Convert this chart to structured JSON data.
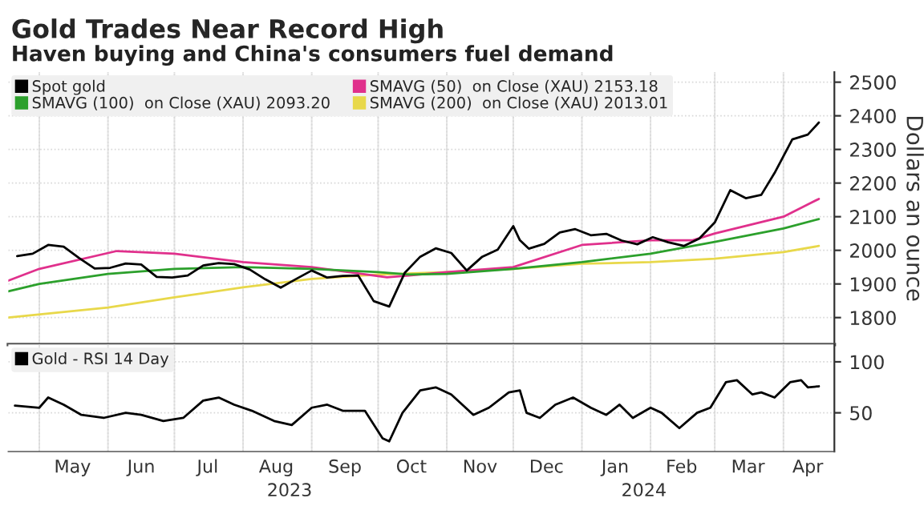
{
  "chart_data": [
    {
      "type": "line",
      "title": "Gold Trades Near Record High",
      "subtitle": "Haven buying and China's consumers fuel demand",
      "ylabel": "Dollars an ounce",
      "xlim": [
        "2023-04-17",
        "2024-04-24"
      ],
      "ylim": [
        1720,
        2530
      ],
      "yticks": [
        1800,
        1900,
        2000,
        2100,
        2200,
        2300,
        2400,
        2500
      ],
      "xticks": [
        {
          "value": "2023-05-01",
          "label": null
        },
        {
          "value": "2023-06-01",
          "label": null
        },
        {
          "value": "2023-07-01",
          "label": null
        },
        {
          "value": "2023-08-01",
          "label": null
        },
        {
          "value": "2023-09-01",
          "label": null
        },
        {
          "value": "2023-10-01",
          "label": null
        },
        {
          "value": "2023-11-01",
          "label": null
        },
        {
          "value": "2023-12-01",
          "label": null
        },
        {
          "value": "2024-01-01",
          "label": null
        },
        {
          "value": "2024-02-01",
          "label": null
        },
        {
          "value": "2024-03-01",
          "label": null
        },
        {
          "value": "2024-04-01",
          "label": null
        }
      ],
      "tick_labels": "y",
      "grid": true,
      "legend": "top left",
      "series": [
        {
          "name": "Spot gold",
          "color": "#000000",
          "x": [
            "2023-04-21",
            "2023-04-28",
            "2023-05-05",
            "2023-05-12",
            "2023-05-19",
            "2023-05-26",
            "2023-06-02",
            "2023-06-09",
            "2023-06-16",
            "2023-06-23",
            "2023-06-30",
            "2023-07-07",
            "2023-07-14",
            "2023-07-21",
            "2023-07-28",
            "2023-08-04",
            "2023-08-11",
            "2023-08-18",
            "2023-08-25",
            "2023-09-01",
            "2023-09-08",
            "2023-09-15",
            "2023-09-22",
            "2023-09-29",
            "2023-10-06",
            "2023-10-13",
            "2023-10-20",
            "2023-10-27",
            "2023-11-03",
            "2023-11-10",
            "2023-11-17",
            "2023-11-24",
            "2023-12-01",
            "2023-12-04",
            "2023-12-08",
            "2023-12-15",
            "2023-12-22",
            "2023-12-29",
            "2024-01-05",
            "2024-01-12",
            "2024-01-19",
            "2024-01-26",
            "2024-02-02",
            "2024-02-09",
            "2024-02-16",
            "2024-02-23",
            "2024-03-01",
            "2024-03-08",
            "2024-03-15",
            "2024-03-22",
            "2024-03-28",
            "2024-04-05",
            "2024-04-12",
            "2024-04-17"
          ],
          "values": [
            1983,
            1990,
            2016,
            2011,
            1977,
            1946,
            1948,
            1961,
            1958,
            1921,
            1919,
            1925,
            1955,
            1962,
            1959,
            1943,
            1914,
            1889,
            1915,
            1940,
            1919,
            1924,
            1925,
            1849,
            1833,
            1933,
            1981,
            2006,
            1992,
            1940,
            1981,
            2002,
            2072,
            2030,
            2005,
            2019,
            2053,
            2063,
            2045,
            2049,
            2029,
            2018,
            2039,
            2024,
            2013,
            2035,
            2083,
            2179,
            2155,
            2165,
            2230,
            2330,
            2344,
            2380
          ]
        },
        {
          "name": "SMAVG (100)  on Close (XAU) 2093.20",
          "color": "#2ca02c",
          "x": [
            "2023-04-17",
            "2023-05-01",
            "2023-06-01",
            "2023-07-01",
            "2023-08-01",
            "2023-09-01",
            "2023-10-01",
            "2023-10-15",
            "2023-11-01",
            "2023-12-01",
            "2024-01-01",
            "2024-02-01",
            "2024-03-01",
            "2024-04-01",
            "2024-04-17"
          ],
          "values": [
            1878,
            1900,
            1930,
            1945,
            1950,
            1945,
            1935,
            1928,
            1930,
            1945,
            1965,
            1990,
            2025,
            2065,
            2093
          ]
        },
        {
          "name": "SMAVG (50)  on Close (XAU) 2153.18",
          "color": "#e0308c",
          "x": [
            "2023-04-17",
            "2023-05-01",
            "2023-06-05",
            "2023-07-01",
            "2023-08-01",
            "2023-09-01",
            "2023-10-05",
            "2023-10-15",
            "2023-11-01",
            "2023-12-01",
            "2024-01-01",
            "2024-02-01",
            "2024-02-20",
            "2024-03-01",
            "2024-04-01",
            "2024-04-17"
          ],
          "values": [
            1910,
            1945,
            1998,
            1990,
            1965,
            1950,
            1920,
            1925,
            1935,
            1950,
            2016,
            2030,
            2030,
            2050,
            2100,
            2153
          ]
        },
        {
          "name": "SMAVG (200)  on Close (XAU) 2013.01",
          "color": "#e8d84a",
          "x": [
            "2023-04-17",
            "2023-06-01",
            "2023-07-01",
            "2023-08-01",
            "2023-09-01",
            "2023-10-01",
            "2023-11-01",
            "2023-12-01",
            "2024-01-01",
            "2024-02-01",
            "2024-03-01",
            "2024-04-01",
            "2024-04-17"
          ],
          "values": [
            1800,
            1830,
            1860,
            1890,
            1915,
            1928,
            1935,
            1945,
            1960,
            1965,
            1975,
            1995,
            2013
          ]
        }
      ]
    },
    {
      "type": "line",
      "xlim": [
        "2023-04-17",
        "2024-04-24"
      ],
      "ylim": [
        12,
        117
      ],
      "yticks": [
        50,
        100
      ],
      "xticks": [
        {
          "value": "2023-05-01",
          "label": null
        },
        {
          "value": "2023-05-16",
          "label": "May"
        },
        {
          "value": "2023-06-01",
          "label": null
        },
        {
          "value": "2023-06-16",
          "label": "Jun"
        },
        {
          "value": "2023-07-01",
          "label": null
        },
        {
          "value": "2023-07-16",
          "label": "Jul"
        },
        {
          "value": "2023-08-01",
          "label": null
        },
        {
          "value": "2023-08-16",
          "label": "Aug"
        },
        {
          "value": "2023-09-01",
          "label": null
        },
        {
          "value": "2023-09-16",
          "label": "Sep"
        },
        {
          "value": "2023-10-01",
          "label": null
        },
        {
          "value": "2023-10-16",
          "label": "Oct"
        },
        {
          "value": "2023-11-01",
          "label": null
        },
        {
          "value": "2023-11-16",
          "label": "Nov"
        },
        {
          "value": "2023-12-01",
          "label": null
        },
        {
          "value": "2023-12-16",
          "label": "Dec"
        },
        {
          "value": "2024-01-01",
          "label": null
        },
        {
          "value": "2024-01-16",
          "label": "Jan"
        },
        {
          "value": "2024-02-01",
          "label": null
        },
        {
          "value": "2024-02-15",
          "label": "Feb"
        },
        {
          "value": "2024-03-01",
          "label": null
        },
        {
          "value": "2024-03-16",
          "label": "Mar"
        },
        {
          "value": "2024-04-01",
          "label": null
        },
        {
          "value": "2024-04-12",
          "label": "Apr"
        }
      ],
      "x2lim": [
        "2023-04-17",
        "2024-04-24"
      ],
      "x2ticks": [
        {
          "value": "2023-08-22",
          "label": "2023"
        },
        {
          "value": "2024-01-29",
          "label": "2024"
        }
      ],
      "grid": true,
      "legend": "top left",
      "series": [
        {
          "name": "Gold - RSI 14 Day",
          "color": "#000000",
          "x": [
            "2023-04-20",
            "2023-05-01",
            "2023-05-05",
            "2023-05-12",
            "2023-05-20",
            "2023-05-30",
            "2023-06-09",
            "2023-06-16",
            "2023-06-26",
            "2023-07-05",
            "2023-07-14",
            "2023-07-21",
            "2023-07-28",
            "2023-08-05",
            "2023-08-15",
            "2023-08-23",
            "2023-09-01",
            "2023-09-08",
            "2023-09-15",
            "2023-09-25",
            "2023-10-03",
            "2023-10-06",
            "2023-10-12",
            "2023-10-20",
            "2023-10-27",
            "2023-11-03",
            "2023-11-13",
            "2023-11-20",
            "2023-11-29",
            "2023-12-04",
            "2023-12-07",
            "2023-12-13",
            "2023-12-20",
            "2023-12-28",
            "2024-01-05",
            "2024-01-12",
            "2024-01-18",
            "2024-01-24",
            "2024-02-01",
            "2024-02-06",
            "2024-02-14",
            "2024-02-22",
            "2024-02-28",
            "2024-03-06",
            "2024-03-11",
            "2024-03-18",
            "2024-03-22",
            "2024-03-28",
            "2024-04-04",
            "2024-04-09",
            "2024-04-12",
            "2024-04-17"
          ],
          "values": [
            57,
            55,
            65,
            58,
            48,
            45,
            50,
            48,
            42,
            45,
            62,
            65,
            58,
            52,
            42,
            38,
            55,
            58,
            52,
            52,
            25,
            22,
            50,
            72,
            75,
            68,
            48,
            55,
            70,
            72,
            50,
            45,
            58,
            65,
            55,
            48,
            58,
            45,
            55,
            50,
            35,
            50,
            55,
            80,
            82,
            68,
            70,
            65,
            80,
            82,
            75,
            76
          ]
        }
      ]
    }
  ]
}
